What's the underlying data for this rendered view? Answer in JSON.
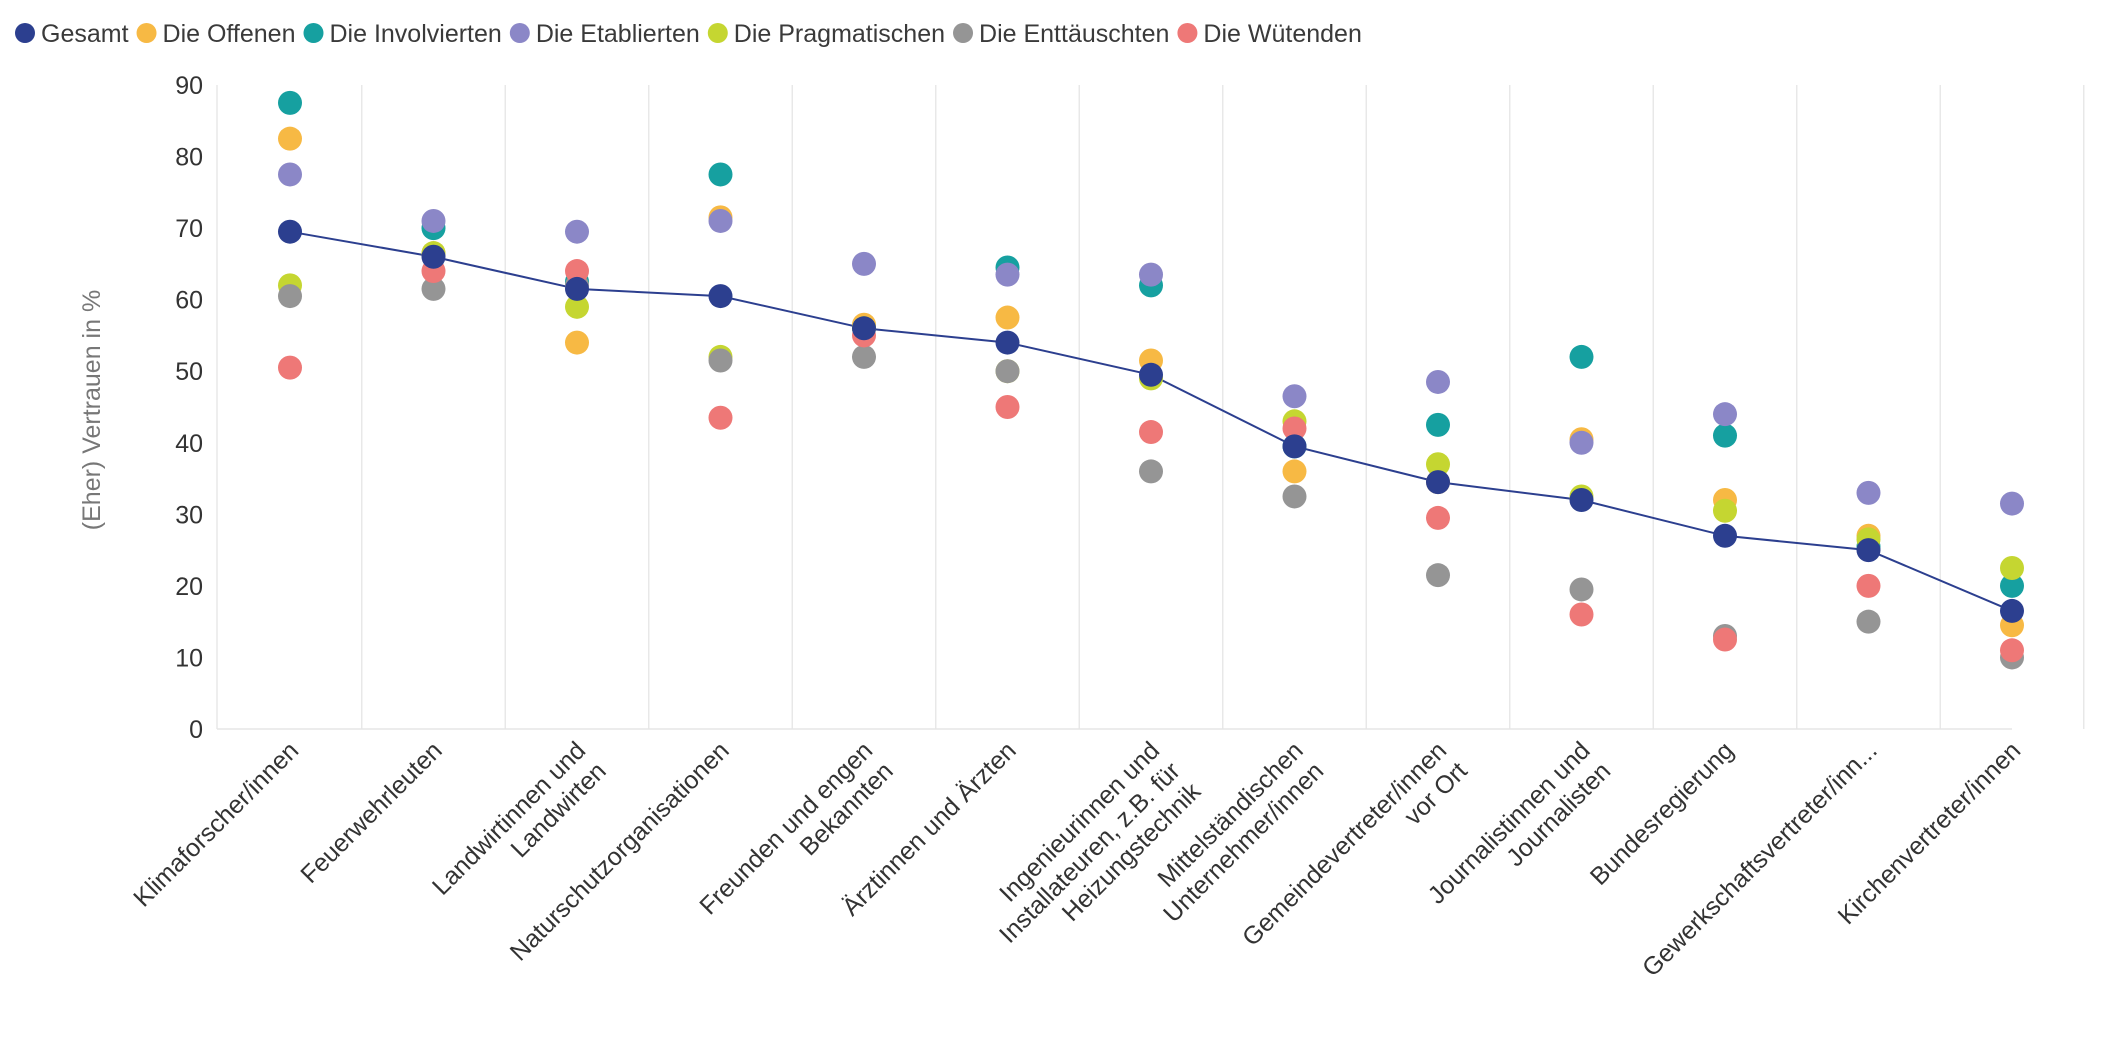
{
  "chart_data": {
    "type": "scatter",
    "title": "",
    "xlabel": "",
    "ylabel": "(Eher) Vertrauen in %",
    "ylim": [
      0,
      90
    ],
    "yticks": [
      0,
      10,
      20,
      30,
      40,
      50,
      60,
      70,
      80,
      90
    ],
    "grid": "vertical",
    "legend_position": "top-left",
    "categories": [
      [
        "Klimaforscher/innen"
      ],
      [
        "Feuerwehrleuten"
      ],
      [
        "Landwirtinnen und",
        "Landwirten"
      ],
      [
        "Naturschutzorganisationen"
      ],
      [
        "Freunden und engen",
        "Bekannten"
      ],
      [
        "Ärztinnen und Ärzten"
      ],
      [
        "Ingenieurinnen und",
        "Installateuren, z.B. für",
        "Heizungstechnik"
      ],
      [
        "Mittelständischen",
        "Unternehmer/innen"
      ],
      [
        "Gemeindevertreter/innen",
        "vor Ort"
      ],
      [
        "Journalistinnen und",
        "Journalisten"
      ],
      [
        "Bundesregierung"
      ],
      [
        "Gewerkschaftsvertreter/inn..."
      ],
      [
        "Kirchenvertreter/innen"
      ]
    ],
    "series": [
      {
        "name": "Die Offenen",
        "color": "#f7b944",
        "values": [
          82.5,
          66.5,
          54,
          71.5,
          56.5,
          57.5,
          51.5,
          36,
          34.5,
          40.5,
          32,
          27,
          14.5
        ]
      },
      {
        "name": "Die Involvierten",
        "color": "#16a0a0",
        "values": [
          87.5,
          70,
          62.5,
          77.5,
          56,
          64.5,
          62,
          39.5,
          42.5,
          52,
          41,
          25.5,
          20
        ]
      },
      {
        "name": "Die Pragmatischen",
        "color": "#c5d631",
        "values": [
          62,
          66.5,
          59,
          52,
          56,
          50,
          49,
          43,
          37,
          32.5,
          30.5,
          26.5,
          22.5
        ]
      },
      {
        "name": "Die Enttäuschten",
        "color": "#959595",
        "values": [
          60.5,
          61.5,
          62,
          51.5,
          52,
          50,
          36,
          32.5,
          21.5,
          19.5,
          13,
          15,
          10
        ]
      },
      {
        "name": "Die Wütenden",
        "color": "#ee7877",
        "values": [
          50.5,
          64,
          64,
          43.5,
          55,
          45,
          41.5,
          42,
          29.5,
          16,
          12.5,
          20,
          11
        ]
      },
      {
        "name": "Die Etablierten",
        "color": "#8b87c7",
        "values": [
          77.5,
          71,
          69.5,
          71,
          65,
          63.5,
          63.5,
          46.5,
          48.5,
          40,
          44,
          33,
          31.5
        ]
      },
      {
        "name": "Gesamt",
        "color": "#2c3f8f",
        "line": true,
        "values": [
          69.5,
          66,
          61.5,
          60.5,
          56,
          54,
          49.5,
          39.5,
          34.5,
          32,
          27,
          25,
          16.5
        ]
      }
    ],
    "legend": [
      {
        "name": "Gesamt",
        "color": "#2c3f8f"
      },
      {
        "name": "Die Offenen",
        "color": "#f7b944"
      },
      {
        "name": "Die Involvierten",
        "color": "#16a0a0"
      },
      {
        "name": "Die Etablierten",
        "color": "#8b87c7"
      },
      {
        "name": "Die Pragmatischen",
        "color": "#c5d631"
      },
      {
        "name": "Die Enttäuschten",
        "color": "#959595"
      },
      {
        "name": "Die Wütenden",
        "color": "#ee7877"
      }
    ]
  }
}
